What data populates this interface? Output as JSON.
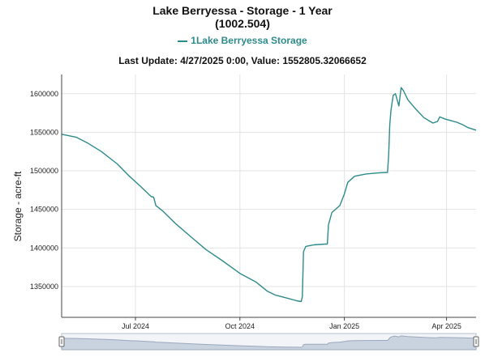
{
  "title_line1": "Lake Berryessa - Storage - 1 Year",
  "title_line2": "(1002.504)",
  "legend_label": "1Lake Berryessa Storage",
  "update_text": "Last Update: 4/27/2025 0:00, Value: 1552805.32066652",
  "ylabel": "Storage - acre-ft",
  "colors": {
    "series": "#2e8b8b",
    "grid": "#e3e3e3",
    "axis": "#444444",
    "navigator_fill": "#c9d3e0",
    "navigator_line": "#9aa8bd"
  },
  "chart_data": {
    "type": "line",
    "title": "Lake Berryessa - Storage - 1 Year",
    "subtitle": "(1002.504)",
    "xlabel": "",
    "ylabel": "Storage - acre-ft",
    "ylim": [
      1310000,
      1625000
    ],
    "xlim": [
      "2024-04-27",
      "2025-04-27"
    ],
    "x_ticks": [
      {
        "date": "2024-07-01",
        "label": "Jul 2024"
      },
      {
        "date": "2024-10-01",
        "label": "Oct 2024"
      },
      {
        "date": "2025-01-01",
        "label": "Jan 2025"
      },
      {
        "date": "2025-04-01",
        "label": "Apr 2025"
      }
    ],
    "y_ticks": [
      1350000,
      1400000,
      1450000,
      1500000,
      1550000,
      1600000
    ],
    "grid": true,
    "legend": "top-center",
    "series": [
      {
        "name": "1Lake Berryessa Storage",
        "points": [
          [
            "2024-04-27",
            1547500
          ],
          [
            "2024-05-10",
            1543500
          ],
          [
            "2024-05-20",
            1536000
          ],
          [
            "2024-06-01",
            1525000
          ],
          [
            "2024-06-15",
            1509000
          ],
          [
            "2024-06-25",
            1494000
          ],
          [
            "2024-07-05",
            1480500
          ],
          [
            "2024-07-15",
            1466500
          ],
          [
            "2024-07-17",
            1466000
          ],
          [
            "2024-07-19",
            1455000
          ],
          [
            "2024-07-25",
            1448000
          ],
          [
            "2024-08-05",
            1432000
          ],
          [
            "2024-08-20",
            1413000
          ],
          [
            "2024-09-01",
            1398000
          ],
          [
            "2024-09-15",
            1384000
          ],
          [
            "2024-10-01",
            1367000
          ],
          [
            "2024-10-15",
            1356000
          ],
          [
            "2024-10-25",
            1344000
          ],
          [
            "2024-11-01",
            1339000
          ],
          [
            "2024-11-10",
            1335500
          ],
          [
            "2024-11-20",
            1331500
          ],
          [
            "2024-11-24",
            1330500
          ],
          [
            "2024-11-25",
            1337000
          ],
          [
            "2024-11-26",
            1395000
          ],
          [
            "2024-11-28",
            1402000
          ],
          [
            "2024-12-05",
            1404000
          ],
          [
            "2024-12-15",
            1405000
          ],
          [
            "2024-12-17",
            1405000
          ],
          [
            "2024-12-18",
            1430000
          ],
          [
            "2024-12-21",
            1446000
          ],
          [
            "2024-12-28",
            1455000
          ],
          [
            "2025-01-01",
            1470000
          ],
          [
            "2025-01-04",
            1485000
          ],
          [
            "2025-01-10",
            1493000
          ],
          [
            "2025-01-20",
            1496000
          ],
          [
            "2025-02-01",
            1497500
          ],
          [
            "2025-02-08",
            1498000
          ],
          [
            "2025-02-09",
            1520000
          ],
          [
            "2025-02-10",
            1560000
          ],
          [
            "2025-02-11",
            1578000
          ],
          [
            "2025-02-13",
            1598000
          ],
          [
            "2025-02-15",
            1600000
          ],
          [
            "2025-02-18",
            1584000
          ],
          [
            "2025-02-20",
            1608000
          ],
          [
            "2025-02-22",
            1604000
          ],
          [
            "2025-02-26",
            1592000
          ],
          [
            "2025-03-05",
            1580000
          ],
          [
            "2025-03-12",
            1569000
          ],
          [
            "2025-03-20",
            1562000
          ],
          [
            "2025-03-24",
            1564000
          ],
          [
            "2025-03-26",
            1570000
          ],
          [
            "2025-03-31",
            1567000
          ],
          [
            "2025-04-05",
            1565000
          ],
          [
            "2025-04-10",
            1563000
          ],
          [
            "2025-04-15",
            1560000
          ],
          [
            "2025-04-20",
            1556000
          ],
          [
            "2025-04-27",
            1552805
          ]
        ]
      }
    ]
  }
}
